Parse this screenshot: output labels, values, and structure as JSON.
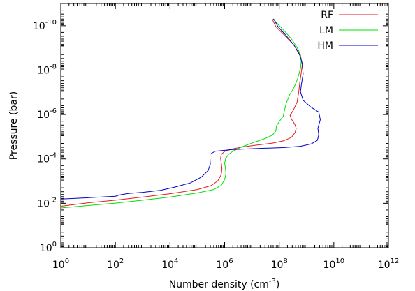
{
  "chart_data": {
    "type": "line",
    "xlabel": "Number density (cm",
    "xlabel_sup": "-3",
    "xlabel_suffix": ")",
    "ylabel": "Pressure (bar)",
    "x_scale": "log",
    "y_scale": "log",
    "y_inverted": true,
    "xlim": [
      1,
      1000000000000.0
    ],
    "ylim": [
      1,
      1e-11
    ],
    "x_ticks": [
      {
        "value": 1,
        "base": "10",
        "exp": "0"
      },
      {
        "value": 100,
        "base": "10",
        "exp": "2"
      },
      {
        "value": 10000,
        "base": "10",
        "exp": "4"
      },
      {
        "value": 1000000,
        "base": "10",
        "exp": "6"
      },
      {
        "value": 100000000,
        "base": "10",
        "exp": "8"
      },
      {
        "value": 10000000000,
        "base": "10",
        "exp": "10"
      },
      {
        "value": 1000000000000,
        "base": "10",
        "exp": "12"
      }
    ],
    "y_ticks": [
      {
        "value": 1,
        "base": "10",
        "exp": "0"
      },
      {
        "value": 0.01,
        "base": "10",
        "exp": "-2"
      },
      {
        "value": 0.0001,
        "base": "10",
        "exp": "-4"
      },
      {
        "value": 1e-06,
        "base": "10",
        "exp": "-6"
      },
      {
        "value": 1e-08,
        "base": "10",
        "exp": "-8"
      },
      {
        "value": 1e-10,
        "base": "10",
        "exp": "-10"
      }
    ],
    "grid": false,
    "legend_position": "top-right",
    "series": [
      {
        "name": "RF",
        "color": "#e41a1c",
        "points": [
          [
            1,
            0.0135
          ],
          [
            10,
            0.0095
          ],
          [
            100,
            0.0072
          ],
          [
            1000,
            0.0052
          ],
          [
            10000,
            0.0037
          ],
          [
            100000,
            0.0024
          ],
          [
            316000,
            0.0016
          ],
          [
            560000,
            0.00098
          ],
          [
            750000,
            0.00051
          ],
          [
            800000,
            0.00029
          ],
          [
            760000,
            0.00016
          ],
          [
            710000,
            9.3e-05
          ],
          [
            760000,
            6.2e-05
          ],
          [
            1000000,
            4.6e-05
          ],
          [
            1800000,
            3.6e-05
          ],
          [
            4500000,
            2.9e-05
          ],
          [
            14000000,
            2.4e-05
          ],
          [
            56000000,
            1.95e-05
          ],
          [
            150000000,
            1.51e-05
          ],
          [
            280000000,
            1.07e-05
          ],
          [
            380000000,
            6.5e-06
          ],
          [
            420000000,
            4.2e-06
          ],
          [
            370000000,
            2.7e-06
          ],
          [
            280000000,
            1.6e-06
          ],
          [
            250000000,
            1.1e-06
          ],
          [
            330000000,
            6.3e-07
          ],
          [
            450000000,
            2.8e-07
          ],
          [
            520000000,
            9.5e-08
          ],
          [
            560000000,
            4e-08
          ],
          [
            630000000,
            1.5e-08
          ],
          [
            700000000,
            5.5e-09
          ],
          [
            600000000,
            2.1e-09
          ],
          [
            350000000,
            7.6e-10
          ],
          [
            160000000,
            2.8e-10
          ],
          [
            75000000,
            1.1e-10
          ],
          [
            55000000,
            4.9e-11
          ]
        ]
      },
      {
        "name": "LM",
        "color": "#00e000",
        "points": [
          [
            1,
            0.0162
          ],
          [
            10,
            0.0125
          ],
          [
            100,
            0.0098
          ],
          [
            1000,
            0.0072
          ],
          [
            10000,
            0.0052
          ],
          [
            100000,
            0.0034
          ],
          [
            400000,
            0.0024
          ],
          [
            750000,
            0.00155
          ],
          [
            1000000,
            0.00085
          ],
          [
            1120000,
            0.00046
          ],
          [
            1070000,
            0.00026
          ],
          [
            1000000,
            0.000155
          ],
          [
            1100000,
            9.3e-05
          ],
          [
            1400000,
            6.2e-05
          ],
          [
            2200000,
            4.2e-05
          ],
          [
            4500000,
            2.8e-05
          ],
          [
            11000000,
            1.85e-05
          ],
          [
            28000000,
            1.25e-05
          ],
          [
            56000000,
            8.5e-06
          ],
          [
            75000000,
            5.5e-06
          ],
          [
            80000000,
            3.2e-06
          ],
          [
            105000000,
            1.9e-06
          ],
          [
            140000000,
            1.2e-06
          ],
          [
            155000000,
            6.6e-07
          ],
          [
            180000000,
            3.1e-07
          ],
          [
            240000000,
            1.3e-07
          ],
          [
            350000000,
            6e-08
          ],
          [
            470000000,
            2.5e-08
          ],
          [
            600000000,
            8.5e-09
          ],
          [
            650000000,
            3.3e-09
          ],
          [
            500000000,
            1.2e-09
          ],
          [
            300000000,
            4.4e-10
          ],
          [
            160000000,
            1.8e-10
          ],
          [
            90000000,
            8.7e-11
          ],
          [
            60000000,
            4.9e-11
          ]
        ]
      },
      {
        "name": "HM",
        "color": "#0000cc",
        "points": [
          [
            1,
            0.0064
          ],
          [
            10,
            0.0056
          ],
          [
            100,
            0.0048
          ],
          [
            140,
            0.0042
          ],
          [
            300,
            0.0036
          ],
          [
            1000,
            0.0032
          ],
          [
            4500,
            0.0026
          ],
          [
            14000,
            0.0019
          ],
          [
            56000,
            0.0012
          ],
          [
            140000,
            0.00066
          ],
          [
            250000,
            0.00033
          ],
          [
            300000,
            0.00017
          ],
          [
            290000,
            9.1e-05
          ],
          [
            290000,
            6.2e-05
          ],
          [
            450000,
            4.5e-05
          ],
          [
            1800000,
            3.8e-05
          ],
          [
            14000000,
            3.4e-05
          ],
          [
            140000000,
            3.1e-05
          ],
          [
            600000000,
            2.7e-05
          ],
          [
            1500000000,
            2.1e-05
          ],
          [
            2500000000,
            1.45e-05
          ],
          [
            2800000000,
            8.1e-06
          ],
          [
            2600000000,
            4.2e-06
          ],
          [
            3200000000,
            1.7e-06
          ],
          [
            2800000000,
            7.8e-07
          ],
          [
            1400000000,
            4.5e-07
          ],
          [
            750000000,
            2.3e-07
          ],
          [
            600000000,
            9.5e-08
          ],
          [
            650000000,
            4.3e-08
          ],
          [
            750000000,
            1.5e-08
          ],
          [
            700000000,
            5.2e-09
          ],
          [
            560000000,
            2.1e-09
          ],
          [
            350000000,
            7.6e-10
          ],
          [
            180000000,
            2.8e-10
          ],
          [
            90000000,
            1.1e-10
          ],
          [
            62000000,
            4.9e-11
          ]
        ]
      }
    ]
  }
}
